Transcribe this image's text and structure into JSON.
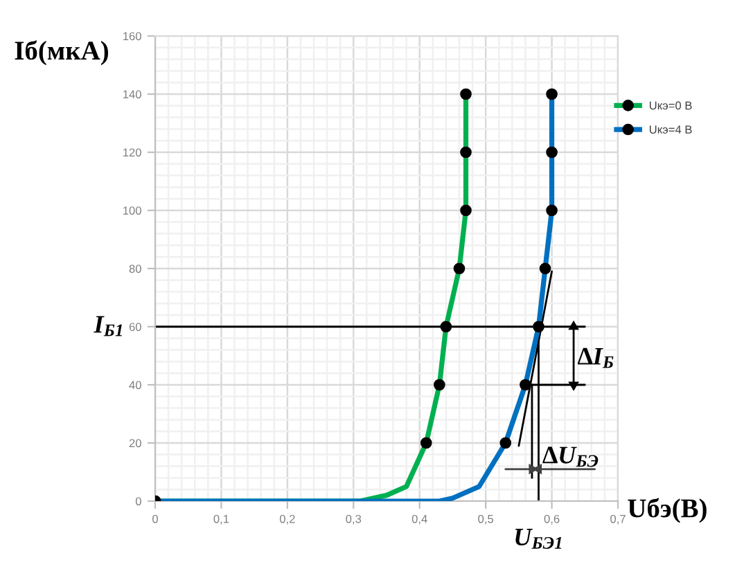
{
  "chart_data": {
    "type": "line",
    "xlabel": "Uбэ(В)",
    "ylabel": "Iб(мкА)",
    "xlim": [
      0,
      0.7
    ],
    "ylim": [
      0,
      160
    ],
    "xticks": [
      0,
      {
        "value": 0.02,
        "label": null
      },
      {
        "value": 0.04,
        "label": null
      },
      {
        "value": 0.06,
        "label": null
      },
      {
        "value": 0.08,
        "label": null
      },
      {
        "value": 0.1,
        "label": "0,1"
      },
      {
        "value": 0.12,
        "label": null
      },
      {
        "value": 0.14,
        "label": null
      },
      {
        "value": 0.16,
        "label": null
      },
      {
        "value": 0.18,
        "label": null
      },
      {
        "value": 0.2,
        "label": "0,2"
      },
      {
        "value": 0.22,
        "label": null
      },
      {
        "value": 0.24,
        "label": null
      },
      {
        "value": 0.26,
        "label": null
      },
      {
        "value": 0.28,
        "label": null
      },
      {
        "value": 0.3,
        "label": "0,3"
      },
      {
        "value": 0.32,
        "label": null
      },
      {
        "value": 0.34,
        "label": null
      },
      {
        "value": 0.36,
        "label": null
      },
      {
        "value": 0.38,
        "label": null
      },
      {
        "value": 0.4,
        "label": "0,4"
      },
      {
        "value": 0.42,
        "label": null
      },
      {
        "value": 0.44,
        "label": null
      },
      {
        "value": 0.46,
        "label": null
      },
      {
        "value": 0.48,
        "label": null
      },
      {
        "value": 0.5,
        "label": "0,5"
      },
      {
        "value": 0.52,
        "label": null
      },
      {
        "value": 0.54,
        "label": null
      },
      {
        "value": 0.56,
        "label": null
      },
      {
        "value": 0.58,
        "label": null
      },
      {
        "value": 0.6,
        "label": "0,6"
      },
      {
        "value": 0.62,
        "label": null
      },
      {
        "value": 0.64,
        "label": null
      },
      {
        "value": 0.66,
        "label": null
      },
      {
        "value": 0.68,
        "label": null
      },
      {
        "value": 0.7,
        "label": "0,7"
      }
    ],
    "yticks": [
      0,
      {
        "value": 4,
        "label": null
      },
      {
        "value": 8,
        "label": null
      },
      {
        "value": 12,
        "label": null
      },
      {
        "value": 16,
        "label": null
      },
      20,
      {
        "value": 24,
        "label": null
      },
      {
        "value": 28,
        "label": null
      },
      {
        "value": 32,
        "label": null
      },
      {
        "value": 36,
        "label": null
      },
      40,
      {
        "value": 44,
        "label": null
      },
      {
        "value": 48,
        "label": null
      },
      {
        "value": 52,
        "label": null
      },
      {
        "value": 56,
        "label": null
      },
      60,
      {
        "value": 64,
        "label": null
      },
      {
        "value": 68,
        "label": null
      },
      {
        "value": 72,
        "label": null
      },
      {
        "value": 76,
        "label": null
      },
      80,
      {
        "value": 84,
        "label": null
      },
      {
        "value": 88,
        "label": null
      },
      {
        "value": 92,
        "label": null
      },
      {
        "value": 96,
        "label": null
      },
      100,
      {
        "value": 104,
        "label": null
      },
      {
        "value": 108,
        "label": null
      },
      {
        "value": 112,
        "label": null
      },
      {
        "value": 116,
        "label": null
      },
      120,
      {
        "value": 124,
        "label": null
      },
      {
        "value": 128,
        "label": null
      },
      {
        "value": 132,
        "label": null
      },
      {
        "value": 136,
        "label": null
      },
      140,
      {
        "value": 144,
        "label": null
      },
      {
        "value": 148,
        "label": null
      },
      {
        "value": 152,
        "label": null
      },
      {
        "value": 156,
        "label": null
      },
      160
    ],
    "grid": true,
    "legend": "top right",
    "marker": "circle",
    "line_style": "solid",
    "series": [
      {
        "name": "Uкэ=0 В",
        "color": "#00b050",
        "x": [
          0,
          0.31,
          0.35,
          0.38,
          0.41,
          0.43,
          0.44,
          0.46,
          0.47,
          0.47,
          0.47
        ],
        "values": [
          0,
          0,
          2,
          5,
          20,
          40,
          60,
          80,
          100,
          120,
          140
        ],
        "colors": [
          "#000000",
          null,
          null,
          null,
          "#000000",
          "#000000",
          "#000000",
          "#000000",
          "#000000",
          "#000000",
          "#000000"
        ]
      },
      {
        "name": "Uкэ=4 В",
        "color": "#0070c0",
        "x": [
          0,
          0.43,
          0.45,
          0.49,
          0.53,
          0.56,
          0.58,
          0.59,
          0.6,
          0.6,
          0.6
        ],
        "values": [
          0,
          0,
          1,
          5,
          20,
          40,
          60,
          80,
          100,
          120,
          140
        ],
        "colors": [
          "#000000",
          null,
          null,
          null,
          "#000000",
          "#000000",
          "#000000",
          "#000000",
          "#000000",
          "#000000",
          "#000000"
        ]
      },
      {
        "color": "#000000",
        "marker": "none",
        "x": [
          0,
          0.65
        ],
        "values": [
          60,
          60
        ]
      },
      {
        "color": "#000000",
        "marker": "none",
        "x": [
          0.57,
          0.65
        ],
        "values": [
          40,
          40
        ]
      },
      {
        "color": "#000000",
        "marker": "none",
        "x": [
          0.58,
          0.58
        ],
        "values": [
          60,
          0
        ]
      },
      {
        "color": "#000000",
        "marker": "none",
        "x": [
          0.57,
          0.57
        ],
        "values": [
          40,
          8
        ]
      },
      {
        "color": "#000000",
        "marker": "none",
        "x": [
          0.55,
          0.6
        ],
        "values": [
          19,
          79
        ]
      },
      {
        "color": "#000000",
        "marker": "triangle",
        "x": [
          0.633,
          0.633
        ],
        "values": [
          40,
          60
        ],
        "colors": [
          "#000000",
          "#000000"
        ]
      },
      {
        "color": "#404040",
        "marker": "triangle",
        "x": [
          0.53,
          0.57
        ],
        "values": [
          11,
          11
        ],
        "colors": [
          null,
          "#404040"
        ]
      },
      {
        "color": "#404040",
        "marker": "triangle",
        "x": [
          0.665,
          0.58
        ],
        "values": [
          11,
          11
        ],
        "colors": [
          null,
          "#404040"
        ]
      }
    ],
    "annotations": [
      {
        "text": "I$_{Б1}$",
        "x": 0,
        "y": 60
      },
      {
        "text": "U$_{БЭ1}$",
        "x": 0.58,
        "y": 0
      },
      {
        "text": "∆I$_{Б}$",
        "x": 0.633,
        "y": 49
      },
      {
        "text": "∆U$_{БЭ}$",
        "x": 0.58,
        "y": 15
      }
    ]
  }
}
